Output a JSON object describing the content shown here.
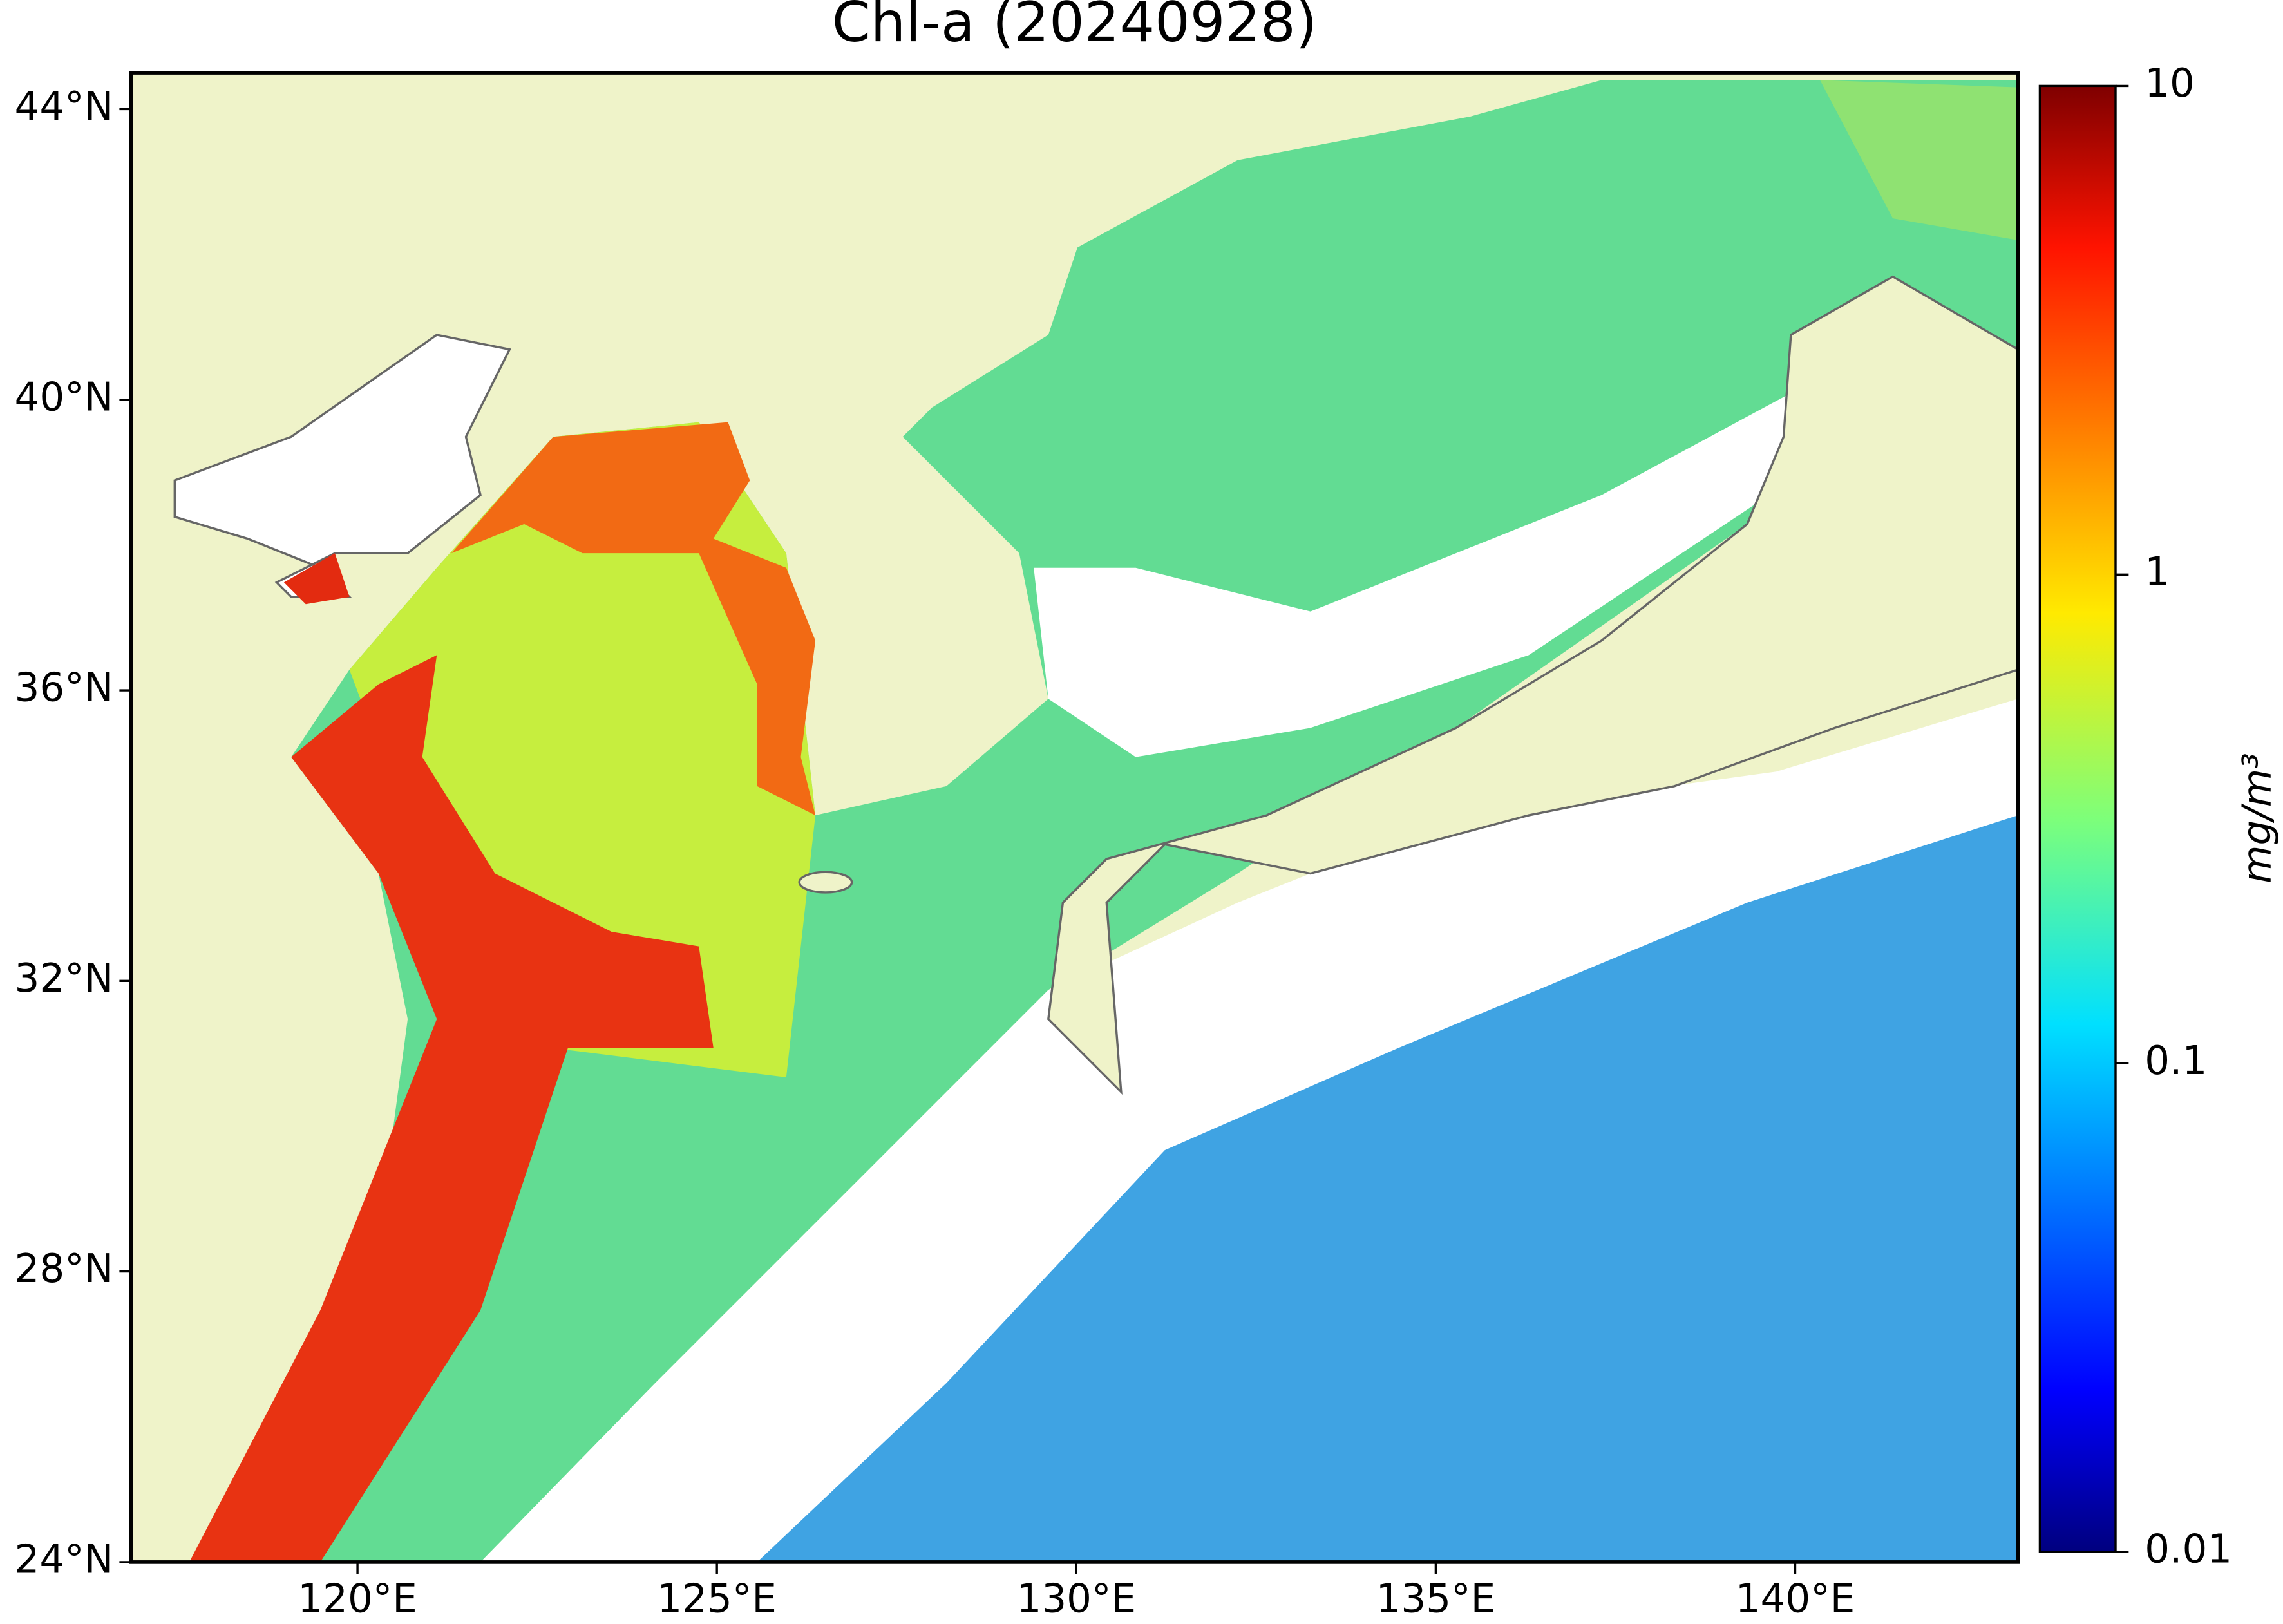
{
  "map": {
    "title": "Chl-a (20240928)",
    "xlim": [
      116.85,
      143.1
    ],
    "ylim": [
      24,
      44.5
    ],
    "xticks": [
      {
        "value": 120,
        "label": "120°E"
      },
      {
        "value": 125,
        "label": "125°E"
      },
      {
        "value": 130,
        "label": "130°E"
      },
      {
        "value": 135,
        "label": "135°E"
      },
      {
        "value": 140,
        "label": "140°E"
      }
    ],
    "yticks": [
      {
        "value": 24,
        "label": "24°N"
      },
      {
        "value": 28,
        "label": "28°N"
      },
      {
        "value": 32,
        "label": "32°N"
      },
      {
        "value": 36,
        "label": "36°N"
      },
      {
        "value": 40,
        "label": "40°N"
      },
      {
        "value": 44,
        "label": "44°N"
      }
    ],
    "colorbar": {
      "label": "mg/m³",
      "scale": "log",
      "colormap": "jet",
      "lim": [
        0.01,
        10
      ],
      "ticks": [
        0.01,
        0.1,
        1,
        10
      ]
    }
  }
}
